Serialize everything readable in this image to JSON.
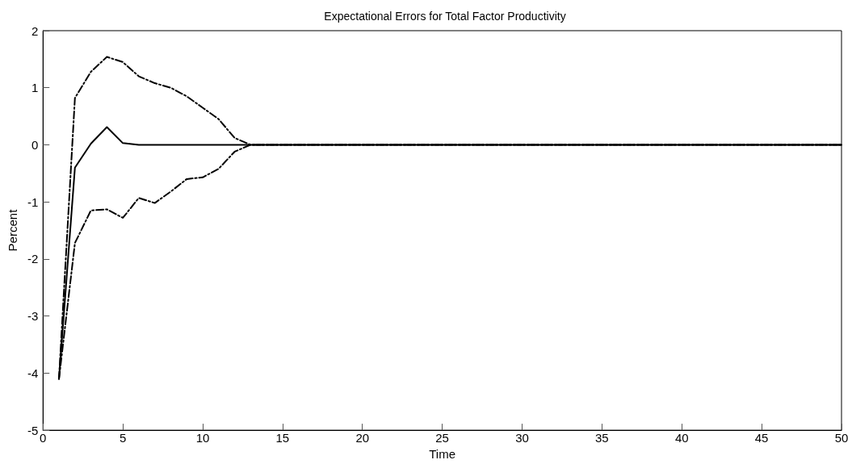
{
  "chart_data": {
    "type": "line",
    "title": "Expectational Errors for Total Factor Productivity",
    "xlabel": "Time",
    "ylabel": "Percent",
    "x": [
      1,
      2,
      3,
      4,
      5,
      6,
      7,
      8,
      9,
      10,
      11,
      12,
      13,
      14,
      15,
      16,
      17,
      18,
      19,
      20,
      21,
      22,
      23,
      24,
      25,
      26,
      27,
      28,
      29,
      30,
      31,
      32,
      33,
      34,
      35,
      36,
      37,
      38,
      39,
      40,
      41,
      42,
      43,
      44,
      45,
      46,
      47,
      48,
      49,
      50
    ],
    "series": [
      {
        "color": "#000000",
        "line_style": "dashed",
        "values": [
          -4.1,
          0.82,
          1.28,
          1.54,
          1.45,
          1.2,
          1.08,
          1.0,
          0.85,
          0.65,
          0.45,
          0.12,
          0,
          0,
          0,
          0,
          0,
          0,
          0,
          0,
          0,
          0,
          0,
          0,
          0,
          0,
          0,
          0,
          0,
          0,
          0,
          0,
          0,
          0,
          0,
          0,
          0,
          0,
          0,
          0,
          0,
          0,
          0,
          0,
          0,
          0,
          0,
          0,
          0,
          0
        ]
      },
      {
        "color": "#000000",
        "line_style": "solid",
        "values": [
          -4.1,
          -0.4,
          0.02,
          0.31,
          0.03,
          0,
          0,
          0,
          0,
          0,
          0,
          0,
          0,
          0,
          0,
          0,
          0,
          0,
          0,
          0,
          0,
          0,
          0,
          0,
          0,
          0,
          0,
          0,
          0,
          0,
          0,
          0,
          0,
          0,
          0,
          0,
          0,
          0,
          0,
          0,
          0,
          0,
          0,
          0,
          0,
          0,
          0,
          0,
          0,
          0
        ]
      },
      {
        "color": "#000000",
        "line_style": "dashed",
        "values": [
          -4.1,
          -1.72,
          -1.15,
          -1.13,
          -1.28,
          -0.93,
          -1.02,
          -0.82,
          -0.6,
          -0.57,
          -0.42,
          -0.12,
          0,
          0,
          0,
          0,
          0,
          0,
          0,
          0,
          0,
          0,
          0,
          0,
          0,
          0,
          0,
          0,
          0,
          0,
          0,
          0,
          0,
          0,
          0,
          0,
          0,
          0,
          0,
          0,
          0,
          0,
          0,
          0,
          0,
          0,
          0,
          0,
          0,
          0
        ]
      }
    ],
    "xlim": [
      0,
      50
    ],
    "xticks": [
      0,
      5,
      10,
      15,
      20,
      25,
      30,
      35,
      40,
      45,
      50
    ],
    "ylim": [
      -5,
      2
    ],
    "yticks": [
      -5,
      -4,
      -3,
      -2,
      -1,
      0,
      1,
      2
    ],
    "grid": false,
    "marker": "none"
  }
}
